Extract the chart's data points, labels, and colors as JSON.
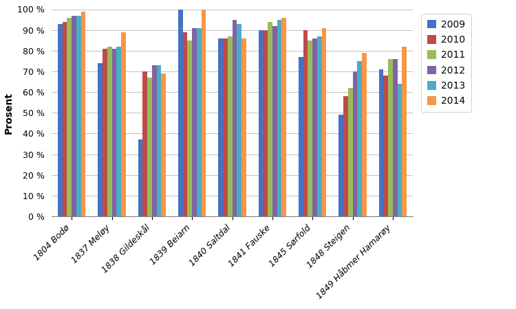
{
  "categories": [
    "1804 Bodø",
    "1837 Meløy",
    "1838 Gildeskål",
    "1839 Beiarn",
    "1840 Saltdal",
    "1841 Fauske",
    "1845 Sørfold",
    "1848 Steigen",
    "1849 Håbmer Hamarøy"
  ],
  "years": [
    "2009",
    "2010",
    "2011",
    "2012",
    "2013",
    "2014"
  ],
  "colors": [
    "#4472C4",
    "#BE4B48",
    "#9BBB59",
    "#8064A2",
    "#4BACC6",
    "#F79646"
  ],
  "data": {
    "2009": [
      93,
      74,
      37,
      100,
      86,
      90,
      77,
      49,
      71
    ],
    "2010": [
      94,
      81,
      70,
      89,
      86,
      90,
      90,
      58,
      68
    ],
    "2011": [
      96,
      82,
      67,
      85,
      87,
      94,
      85,
      62,
      76
    ],
    "2012": [
      97,
      81,
      73,
      91,
      95,
      92,
      86,
      70,
      76
    ],
    "2013": [
      97,
      82,
      73,
      91,
      93,
      95,
      87,
      75,
      64
    ],
    "2014": [
      99,
      89,
      69,
      100,
      86,
      96,
      91,
      79,
      82
    ]
  },
  "ylabel": "Prosent",
  "ylim": [
    0,
    100
  ],
  "yticks": [
    0,
    10,
    20,
    30,
    40,
    50,
    60,
    70,
    80,
    90,
    100
  ],
  "ytick_labels": [
    "0 %",
    "10 %",
    "20 %",
    "30 %",
    "40 %",
    "50 %",
    "60 %",
    "70 %",
    "80 %",
    "90 %",
    "100 %"
  ],
  "background_color": "#FFFFFF",
  "grid_color": "#C0C0C0",
  "legend_fontsize": 10,
  "axis_fontsize": 9,
  "ylabel_fontsize": 10
}
